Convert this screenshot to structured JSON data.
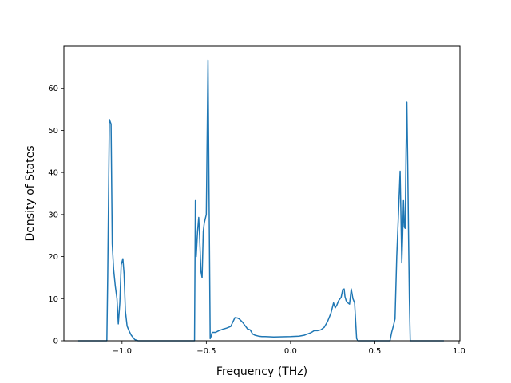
{
  "chart_data": {
    "type": "line",
    "title": "",
    "xlabel": "Frequency (THz)",
    "ylabel": "Density of States",
    "xlim": [
      -1.345,
      1.005
    ],
    "ylim": [
      0,
      70
    ],
    "grid": false,
    "line_color": "#1f77b4",
    "xticks": [
      -1.0,
      -0.5,
      0.0,
      0.5,
      1.0
    ],
    "xtick_labels": [
      "−1.0",
      "−0.5",
      "0.0",
      "0.5",
      "1.0"
    ],
    "yticks": [
      0,
      10,
      20,
      30,
      40,
      50,
      60
    ],
    "ytick_labels": [
      "0",
      "10",
      "20",
      "30",
      "40",
      "50",
      "60"
    ],
    "series": [
      {
        "x": [
          -1.26,
          -1.09,
          -1.085,
          -1.075,
          -1.065,
          -1.058,
          -1.05,
          -1.04,
          -1.03,
          -1.022,
          -1.013,
          -1.005,
          -0.995,
          -0.988,
          -0.98,
          -0.97,
          -0.96,
          -0.945,
          -0.925,
          -0.905,
          -0.89,
          -0.875,
          -0.57,
          -0.565,
          -0.56,
          -0.552,
          -0.545,
          -0.54,
          -0.532,
          -0.525,
          -0.518,
          -0.512,
          -0.5,
          -0.49,
          -0.484,
          -0.477,
          -0.472,
          -0.465,
          -0.445,
          -0.425,
          -0.405,
          -0.38,
          -0.355,
          -0.33,
          -0.315,
          -0.305,
          -0.295,
          -0.285,
          -0.27,
          -0.255,
          -0.24,
          -0.225,
          -0.21,
          -0.19,
          -0.17,
          -0.15,
          -0.1,
          0.0,
          0.05,
          0.08,
          0.1,
          0.12,
          0.14,
          0.16,
          0.18,
          0.2,
          0.22,
          0.24,
          0.255,
          0.265,
          0.275,
          0.285,
          0.3,
          0.31,
          0.318,
          0.323,
          0.33,
          0.34,
          0.35,
          0.36,
          0.37,
          0.38,
          0.392,
          0.4,
          0.405,
          0.5,
          0.59,
          0.6,
          0.61,
          0.62,
          0.63,
          0.64,
          0.65,
          0.66,
          0.665,
          0.67,
          0.675,
          0.68,
          0.685,
          0.69,
          0.695,
          0.7,
          0.705,
          0.71,
          0.72,
          0.73,
          0.74,
          0.91
        ],
        "y": [
          0,
          0,
          15,
          52.6,
          51.5,
          23,
          17,
          13,
          10,
          4,
          9,
          18,
          19.5,
          16,
          7,
          3.5,
          2.5,
          1.3,
          0.3,
          0,
          0,
          0,
          0,
          33.3,
          20,
          26,
          29.3,
          25,
          16.5,
          15,
          26,
          28,
          30,
          66.7,
          36,
          0.5,
          1,
          2,
          2,
          2.4,
          2.7,
          3,
          3.4,
          5.5,
          5.4,
          5.2,
          4.8,
          4.4,
          3.6,
          2.8,
          2.6,
          1.6,
          1.3,
          1.1,
          1.0,
          1.0,
          0.9,
          1.0,
          1.1,
          1.3,
          1.6,
          1.9,
          2.4,
          2.4,
          2.6,
          3.2,
          4.6,
          6.6,
          9,
          7.8,
          8.5,
          9.5,
          10.3,
          12.2,
          12.3,
          10.5,
          9.5,
          9,
          8.7,
          12.3,
          10,
          9,
          0.5,
          0,
          0,
          0,
          0,
          2,
          3.5,
          5.2,
          20,
          30,
          40.3,
          18.5,
          25,
          33.3,
          27,
          26.7,
          45,
          56.7,
          42,
          25,
          10,
          0,
          0,
          0,
          0,
          0
        ]
      }
    ]
  }
}
